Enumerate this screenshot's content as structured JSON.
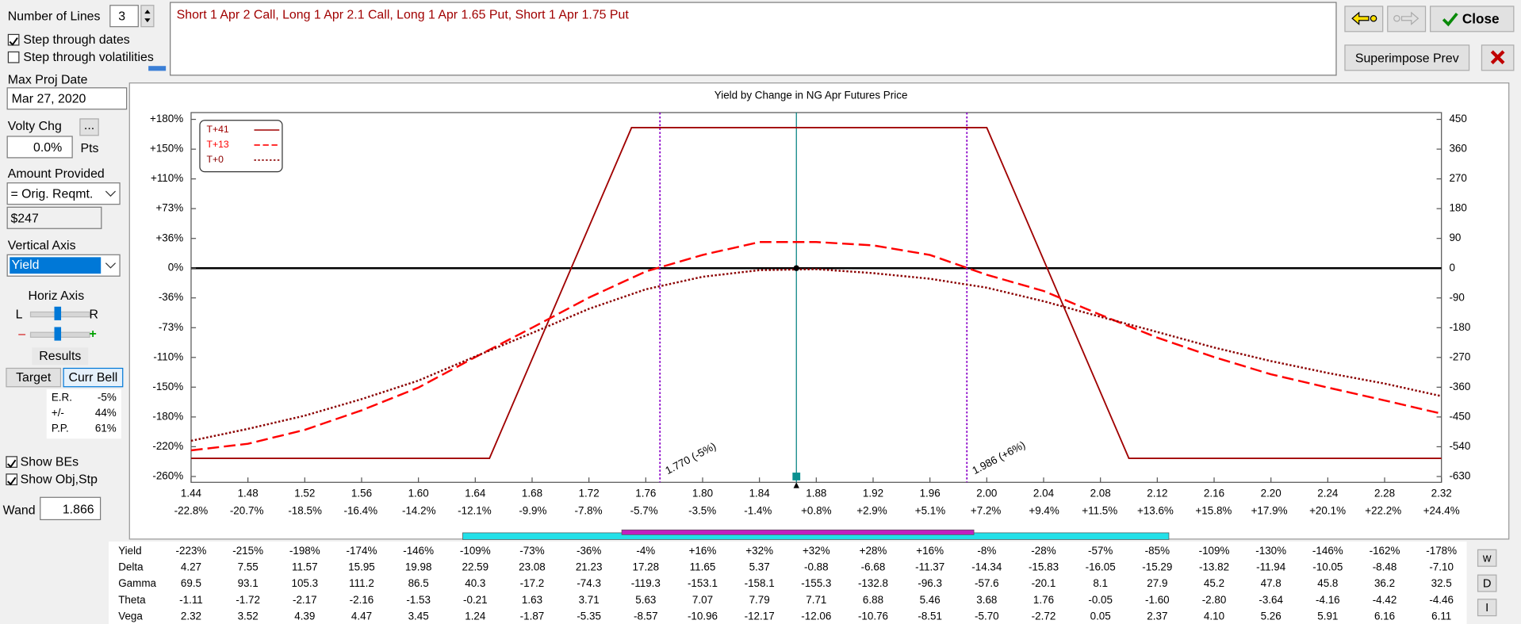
{
  "panel": {
    "number_of_lines_label": "Number of Lines",
    "number_of_lines": 3,
    "step_dates": "Step through dates",
    "step_vols": "Step through volatilities",
    "max_proj_date_label": "Max Proj Date",
    "max_proj_date": "Mar 27, 2020",
    "volty_chg_label": "Volty Chg",
    "volty_button": "...",
    "volty_chg": "0.0%",
    "pts": "Pts",
    "amount_label": "Amount Provided",
    "amount": "= Orig. Reqmt.",
    "amount_value": "$247",
    "vertical_axis_label": "Vertical Axis",
    "vertical_axis": "Yield",
    "horiz_axis_label": "Horiz Axis",
    "left": "L",
    "right": "R",
    "minus": "–",
    "plus": "+",
    "results_label": "Results",
    "target": "Target",
    "curr_bell": "Curr Bell",
    "results": [
      [
        "E.R.",
        "-5%"
      ],
      [
        "+/-",
        "44%"
      ],
      [
        "P.P.",
        "61%"
      ]
    ],
    "show_bes": "Show BEs",
    "show_obj": "Show Obj,Stp",
    "wand_label": "Wand",
    "wand": 1.866
  },
  "header": {
    "positions": "Short 1 Apr 2 Call, Long 1 Apr 2.1 Call, Long 1 Apr 1.65 Put, Short 1 Apr 1.75 Put",
    "close": "Close",
    "superimpose": "Superimpose Prev"
  },
  "chart_data": {
    "type": "line",
    "title": "Yield by Change in NG Apr Futures Price",
    "xlim": [
      1.44,
      2.32
    ],
    "xticks": [
      1.44,
      1.48,
      1.52,
      1.56,
      {
        "value": 1.6,
        "label": "1.60"
      },
      1.64,
      1.68,
      1.72,
      1.76,
      {
        "value": 1.8,
        "label": "1.80"
      },
      1.84,
      1.88,
      1.92,
      1.96,
      {
        "value": 2.0,
        "label": "2.00"
      },
      2.04,
      2.08,
      2.12,
      2.16,
      {
        "value": 2.2,
        "label": "2.20"
      },
      2.24,
      2.28,
      2.32
    ],
    "x2lim": [
      -22.8,
      24.4
    ],
    "x2ticks": [
      {
        "value": -22.8,
        "label": "-22.8%"
      },
      {
        "value": -20.7,
        "label": "-20.7%"
      },
      {
        "value": -18.5,
        "label": "-18.5%"
      },
      {
        "value": -16.4,
        "label": "-16.4%"
      },
      {
        "value": -14.2,
        "label": "-14.2%"
      },
      {
        "value": -12.1,
        "label": "-12.1%"
      },
      {
        "value": -9.9,
        "label": "-9.9%"
      },
      {
        "value": -7.8,
        "label": "-7.8%"
      },
      {
        "value": -5.7,
        "label": "-5.7%"
      },
      {
        "value": -3.5,
        "label": "-3.5%"
      },
      {
        "value": -1.4,
        "label": "-1.4%"
      },
      {
        "value": 0.8,
        "label": "+0.8%"
      },
      {
        "value": 2.9,
        "label": "+2.9%"
      },
      {
        "value": 5.1,
        "label": "+5.1%"
      },
      {
        "value": 7.2,
        "label": "+7.2%"
      },
      {
        "value": 9.4,
        "label": "+9.4%"
      },
      {
        "value": 11.5,
        "label": "+11.5%"
      },
      {
        "value": 13.6,
        "label": "+13.6%"
      },
      {
        "value": 15.8,
        "label": "+15.8%"
      },
      {
        "value": 17.9,
        "label": "+17.9%"
      },
      {
        "value": 20.1,
        "label": "+20.1%"
      },
      {
        "value": 22.2,
        "label": "+22.2%"
      },
      {
        "value": 24.4,
        "label": "+24.4%"
      }
    ],
    "ylim": [
      -630,
      450
    ],
    "yticks": [
      450,
      360,
      270,
      180,
      90,
      0,
      -90,
      -180,
      -270,
      -360,
      -450,
      -540,
      -630
    ],
    "y2lim": [
      -255.1,
      182.2
    ],
    "y2ticks": [
      {
        "value": 182.2,
        "label": "+180%"
      },
      {
        "value": 145.7,
        "label": "+150%"
      },
      {
        "value": 109.3,
        "label": "+110%"
      },
      {
        "value": 72.9,
        "label": "+73%"
      },
      {
        "value": 36.4,
        "label": "+36%"
      },
      {
        "value": 0,
        "label": "0%"
      },
      {
        "value": -36.4,
        "label": "-36%"
      },
      {
        "value": -72.9,
        "label": "-73%"
      },
      {
        "value": -109.3,
        "label": "-110%"
      },
      {
        "value": -145.7,
        "label": "-150%"
      },
      {
        "value": -182.2,
        "label": "-180%"
      },
      {
        "value": -218.6,
        "label": "-220%"
      },
      {
        "value": -255.1,
        "label": "-260%"
      }
    ],
    "grid": false,
    "series": [
      {
        "name": "T+41",
        "color": "#a00000",
        "style": "solid",
        "x": [
          1.44,
          1.65,
          1.75,
          2.0,
          2.1,
          2.32
        ],
        "values": [
          -575,
          -575,
          425,
          425,
          -575,
          -575
        ]
      },
      {
        "name": "T+13",
        "color": "#ff0000",
        "style": "dashed",
        "x": [
          1.44,
          1.48,
          1.52,
          1.56,
          1.6,
          1.64,
          1.68,
          1.72,
          1.76,
          1.8,
          1.84,
          1.88,
          1.92,
          1.96,
          2.0,
          2.04,
          2.08,
          2.12,
          2.16,
          2.2,
          2.24,
          2.28,
          2.32
        ],
        "values": [
          -551,
          -531,
          -489,
          -430,
          -361,
          -269,
          -180,
          -89,
          -10,
          40,
          79,
          79,
          69,
          40,
          -20,
          -69,
          -141,
          -210,
          -269,
          -321,
          -361,
          -400,
          -440
        ]
      },
      {
        "name": "T+0",
        "color": "#8b0000",
        "style": "dotted",
        "x": [
          1.44,
          1.48,
          1.52,
          1.56,
          1.6,
          1.64,
          1.68,
          1.72,
          1.76,
          1.8,
          1.84,
          1.88,
          1.92,
          1.96,
          2.0,
          2.04,
          2.08,
          2.12,
          2.16,
          2.2,
          2.24,
          2.28,
          2.32
        ],
        "values": [
          -522,
          -486,
          -446,
          -396,
          -340,
          -267,
          -196,
          -123,
          -64,
          -26,
          -6,
          -3,
          -15,
          -32,
          -59,
          -100,
          -147,
          -193,
          -240,
          -281,
          -317,
          -349,
          -387
        ]
      }
    ],
    "breakevens": [
      {
        "value": 1.77,
        "label": "1.770 (-5%)"
      },
      {
        "value": 1.986,
        "label": "1.986 (+6%)"
      }
    ]
  },
  "table": {
    "rows": [
      {
        "label": "Yield",
        "values": [
          "-223%",
          "-215%",
          "-198%",
          "-174%",
          "-146%",
          "-109%",
          "-73%",
          "-36%",
          "-4%",
          "+16%",
          "+32%",
          "+32%",
          "+28%",
          "+16%",
          "-8%",
          "-28%",
          "-57%",
          "-85%",
          "-109%",
          "-130%",
          "-146%",
          "-162%",
          "-178%"
        ]
      },
      {
        "label": "Delta",
        "values": [
          "4.27",
          "7.55",
          "11.57",
          "15.95",
          "19.98",
          "22.59",
          "23.08",
          "21.23",
          "17.28",
          "11.65",
          "5.37",
          "-0.88",
          "-6.68",
          "-11.37",
          "-14.34",
          "-15.83",
          "-16.05",
          "-15.29",
          "-13.82",
          "-11.94",
          "-10.05",
          "-8.48",
          "-7.10"
        ]
      },
      {
        "label": "Gamma",
        "values": [
          "69.5",
          "93.1",
          "105.3",
          "111.2",
          "86.5",
          "40.3",
          "-17.2",
          "-74.3",
          "-119.3",
          "-153.1",
          "-158.1",
          "-155.3",
          "-132.8",
          "-96.3",
          "-57.6",
          "-20.1",
          "8.1",
          "27.9",
          "45.2",
          "47.8",
          "45.8",
          "36.2",
          "32.5"
        ]
      },
      {
        "label": "Theta",
        "values": [
          "-1.11",
          "-1.72",
          "-2.17",
          "-2.16",
          "-1.53",
          "-0.21",
          "1.63",
          "3.71",
          "5.63",
          "7.07",
          "7.79",
          "7.71",
          "6.88",
          "5.46",
          "3.68",
          "1.76",
          "-0.05",
          "-1.60",
          "-2.80",
          "-3.64",
          "-4.16",
          "-4.42",
          "-4.46"
        ]
      },
      {
        "label": "Vega",
        "values": [
          "2.32",
          "3.52",
          "4.39",
          "4.47",
          "3.45",
          "1.24",
          "-1.87",
          "-5.35",
          "-8.57",
          "-10.96",
          "-12.17",
          "-12.06",
          "-10.76",
          "-8.51",
          "-5.70",
          "-2.72",
          "0.05",
          "2.37",
          "4.10",
          "5.26",
          "5.91",
          "6.16",
          "6.11"
        ]
      }
    ]
  },
  "side_buttons": [
    "w",
    "D",
    "I"
  ]
}
